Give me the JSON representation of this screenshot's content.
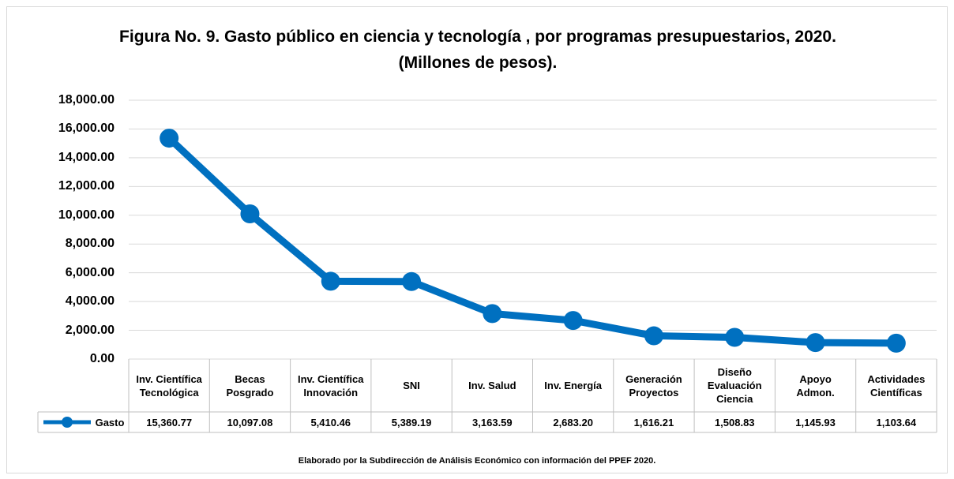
{
  "chart_data": {
    "type": "line",
    "title": "Figura No. 9. Gasto público en ciencia y tecnología , por programas presupuestarios, 2020.  (Millones de pesos).",
    "categories": [
      "Inv. Científica Tecnológica",
      "Becas Posgrado",
      "Inv. Científica Innovación",
      "SNI",
      "Inv. Salud",
      "Inv. Energía",
      "Generación Proyectos",
      "Diseño Evaluación Ciencia",
      "Apoyo Admon.",
      "Actividades Científicas"
    ],
    "series": [
      {
        "name": "Gasto",
        "color": "#0070c0",
        "values": [
          15360.77,
          10097.08,
          5410.46,
          5389.19,
          3163.59,
          2683.2,
          1616.21,
          1508.83,
          1145.93,
          1103.64
        ],
        "value_labels": [
          "15,360.77",
          "10,097.08",
          "5,410.46",
          "5,389.19",
          "3,163.59",
          "2,683.20",
          "1,616.21",
          "1,508.83",
          "1,145.93",
          "1,103.64"
        ]
      }
    ],
    "ylim": [
      0,
      18000
    ],
    "yticks": [
      {
        "value": 0,
        "label": "0.00"
      },
      {
        "value": 2000,
        "label": "2,000.00"
      },
      {
        "value": 4000,
        "label": "4,000.00"
      },
      {
        "value": 6000,
        "label": "6,000.00"
      },
      {
        "value": 8000,
        "label": "8,000.00"
      },
      {
        "value": 10000,
        "label": "10,000.00"
      },
      {
        "value": 12000,
        "label": "12,000.00"
      },
      {
        "value": 14000,
        "label": "14,000.00"
      },
      {
        "value": 16000,
        "label": "16,000.00"
      },
      {
        "value": 18000,
        "label": "18,000.00"
      }
    ],
    "grid": true,
    "source": "Elaborado por la Subdirección de Análisis Económico con información del  PPEF 2020."
  }
}
